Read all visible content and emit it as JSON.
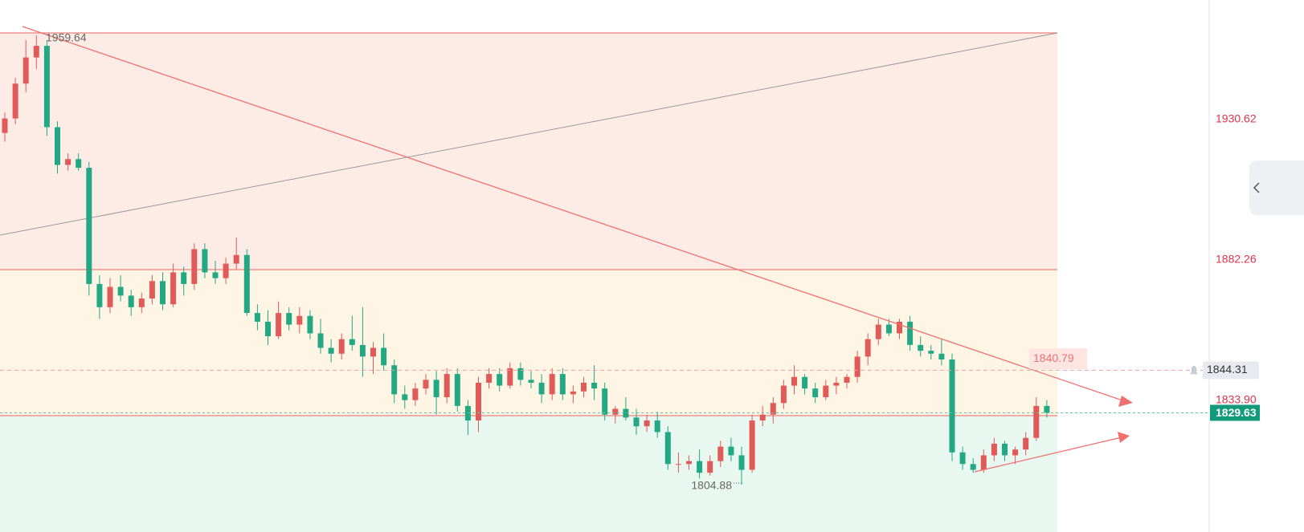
{
  "chart_data": {
    "type": "candlestick",
    "up_color": "#e05a5a",
    "down_color": "#22a884",
    "ylim": [
      1788.59,
      1971.79
    ],
    "yticks": [
      1930.62,
      1882.26,
      {
        "value": 1833.9,
        "label": "1833.90"
      }
    ],
    "open": [
      1926,
      1931,
      1943,
      1952,
      1956,
      1928,
      1915,
      1917,
      1914,
      1874,
      1866,
      1873,
      1870,
      1866,
      1869,
      1875,
      1867,
      1878,
      1874,
      1886,
      1878,
      1876,
      1881,
      1884,
      1864,
      1861,
      1856,
      1864,
      1860,
      1863,
      1857,
      1852,
      1850,
      1855,
      1853,
      1849,
      1852,
      1846,
      1836,
      1834,
      1838,
      1841,
      1835,
      1843,
      1832,
      1827,
      1840,
      1843,
      1839,
      1845,
      1841,
      1840,
      1836,
      1843,
      1836,
      1837,
      1840,
      1838,
      1829,
      1831,
      1828,
      1825,
      1827,
      1823,
      1812,
      1812,
      1813,
      1809,
      1813,
      1818,
      1815,
      1810,
      1827,
      1829,
      1833,
      1839,
      1842,
      1838,
      1835,
      1839,
      1840,
      1842,
      1849,
      1855,
      1860,
      1857,
      1861,
      1853,
      1851,
      1850,
      1848,
      1816,
      1812,
      1810,
      1815,
      1819,
      1815,
      1817,
      1821,
      1832
    ],
    "high": [
      1933,
      1945,
      1958,
      1959.64,
      1958,
      1930,
      1919,
      1919,
      1916,
      1877,
      1876,
      1877,
      1872,
      1871,
      1877,
      1878,
      1881,
      1880,
      1888,
      1888,
      1882,
      1883,
      1890,
      1886,
      1867,
      1865,
      1868,
      1866,
      1866,
      1865,
      1862,
      1855,
      1857,
      1863,
      1866,
      1854,
      1857,
      1848,
      1839,
      1840,
      1843,
      1844,
      1845,
      1845,
      1834,
      1842,
      1845,
      1845,
      1847,
      1847,
      1844,
      1843,
      1845,
      1845,
      1839,
      1842,
      1846,
      1840,
      1832,
      1835,
      1831,
      1829,
      1830,
      1825,
      1816,
      1815,
      1817,
      1815,
      1820,
      1821,
      1818,
      1829,
      1832,
      1835,
      1841,
      1846,
      1843,
      1840,
      1841,
      1842,
      1843,
      1851,
      1857,
      1862,
      1862,
      1862,
      1863,
      1856,
      1853,
      1855,
      1850,
      1818,
      1814,
      1817,
      1821,
      1820,
      1818,
      1823,
      1835,
      1834
    ],
    "low": [
      1923,
      1929,
      1940,
      1948,
      1925,
      1912,
      1913,
      1913,
      1870,
      1862,
      1864,
      1868,
      1863,
      1864,
      1867,
      1865,
      1866,
      1870,
      1872,
      1876,
      1874,
      1874,
      1879,
      1863,
      1858,
      1853,
      1855,
      1858,
      1857,
      1855,
      1850,
      1847,
      1848,
      1851,
      1842,
      1843,
      1844,
      1833,
      1831,
      1832,
      1836,
      1829,
      1833,
      1830,
      1822,
      1823,
      1838,
      1837,
      1838,
      1839,
      1838,
      1833,
      1834,
      1834,
      1833,
      1835,
      1834,
      1827,
      1826,
      1827,
      1822,
      1823,
      1821,
      1810,
      1809,
      1810,
      1807,
      1808,
      1811,
      1813,
      1804.88,
      1809,
      1825,
      1826,
      1831,
      1836,
      1836,
      1833,
      1834,
      1836,
      1838,
      1840,
      1846,
      1853,
      1856,
      1855,
      1851,
      1849,
      1848,
      1846,
      1813,
      1810,
      1809,
      1809,
      1813,
      1813,
      1812,
      1815,
      1820,
      1828
    ],
    "close": [
      1931,
      1943,
      1952,
      1956,
      1928,
      1915,
      1917,
      1914,
      1874,
      1866,
      1873,
      1870,
      1866,
      1869,
      1875,
      1867,
      1878,
      1874,
      1886,
      1878,
      1876,
      1881,
      1884,
      1864,
      1861,
      1856,
      1864,
      1860,
      1863,
      1857,
      1852,
      1850,
      1855,
      1853,
      1849,
      1852,
      1846,
      1836,
      1834,
      1838,
      1841,
      1835,
      1843,
      1832,
      1827,
      1840,
      1843,
      1839,
      1845,
      1841,
      1840,
      1836,
      1843,
      1836,
      1837,
      1840,
      1838,
      1829,
      1831,
      1828,
      1825,
      1827,
      1823,
      1812,
      1812,
      1813,
      1809,
      1813,
      1818,
      1815,
      1810,
      1827,
      1829,
      1833,
      1839,
      1842,
      1838,
      1835,
      1839,
      1840,
      1842,
      1849,
      1855,
      1860,
      1857,
      1861,
      1853,
      1851,
      1850,
      1848,
      1816,
      1812,
      1810,
      1815,
      1819,
      1815,
      1817,
      1821,
      1832,
      1829.63
    ],
    "alert_price": 1844.31,
    "note_price": 1840.79
  }
}
